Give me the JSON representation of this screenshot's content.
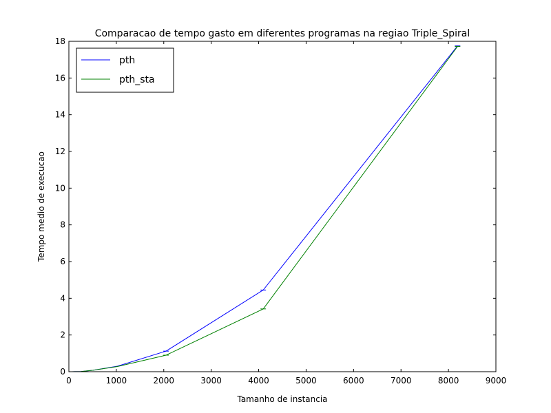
{
  "chart_data": {
    "type": "line",
    "title": "Comparacao de tempo gasto em diferentes programas na regiao Triple_Spiral",
    "xlabel": "Tamanho de instancia",
    "ylabel": "Tempo medio de execucao",
    "xlim": [
      0,
      9000
    ],
    "ylim": [
      0,
      18
    ],
    "xticks": [
      "0",
      "1000",
      "2000",
      "3000",
      "4000",
      "5000",
      "6000",
      "7000",
      "8000",
      "9000"
    ],
    "yticks": [
      "0",
      "2",
      "4",
      "6",
      "8",
      "10",
      "12",
      "14",
      "16",
      "18"
    ],
    "grid": false,
    "legend_position": "top-left",
    "x": [
      16,
      32,
      64,
      128,
      256,
      512,
      1024,
      2048,
      4096,
      8192
    ],
    "series": [
      {
        "name": "pth",
        "color": "#0000ff",
        "values": [
          0.0,
          0.0,
          0.001,
          0.003,
          0.01,
          0.08,
          0.3,
          1.12,
          4.45,
          17.75
        ]
      },
      {
        "name": "pth_sta",
        "color": "#008000",
        "values": [
          0.0,
          0.0,
          0.001,
          0.003,
          0.01,
          0.08,
          0.28,
          0.9,
          3.42,
          17.72
        ]
      }
    ]
  }
}
